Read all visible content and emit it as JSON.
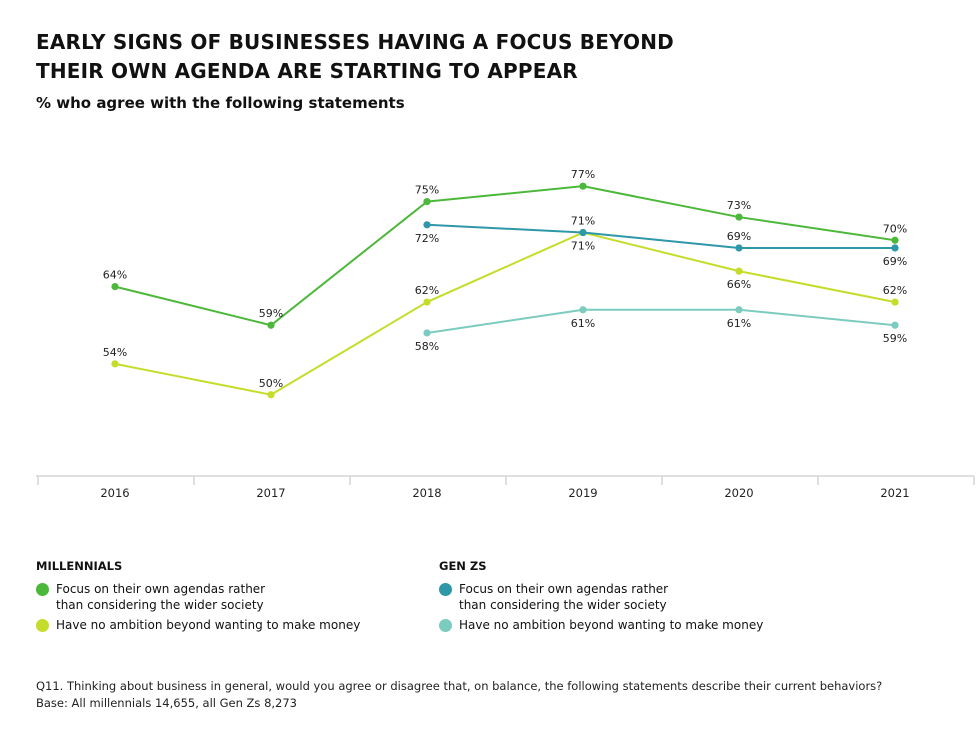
{
  "title": "EARLY SIGNS OF BUSINESSES HAVING A FOCUS BEYOND THEIR OWN AGENDA ARE STARTING TO APPEAR",
  "subtitle": "% who agree with the following statements",
  "chart_data": {
    "type": "line",
    "categories": [
      "2016",
      "2017",
      "2018",
      "2019",
      "2020",
      "2021"
    ],
    "ylim": [
      40,
      80
    ],
    "grid": false,
    "value_suffix": "%",
    "series": [
      {
        "name": "Millennials: Focus on their own agendas rather than considering the wider society",
        "color": "#4cb83a",
        "values": [
          64,
          59,
          75,
          77,
          73,
          70
        ]
      },
      {
        "name": "Millennials: Have no ambition beyond wanting to make money",
        "color": "#c5dd2a",
        "values": [
          54,
          50,
          62,
          71,
          66,
          62
        ]
      },
      {
        "name": "Gen Zs: Focus on their own agendas rather than considering the wider society",
        "color": "#2e97a8",
        "values": [
          null,
          null,
          72,
          71,
          69,
          69
        ]
      },
      {
        "name": "Gen Zs: Have no ambition beyond wanting to make money",
        "color": "#7ccbbf",
        "values": [
          null,
          null,
          58,
          61,
          61,
          59
        ]
      }
    ],
    "legend_placement": "bottom"
  },
  "legend": {
    "groups": [
      {
        "heading": "MILLENNIALS",
        "items": [
          {
            "label": "Focus on their own agendas rather than considering the wider society",
            "color": "#4cb83a"
          },
          {
            "label": "Have no ambition beyond wanting to make money",
            "color": "#c5dd2a"
          }
        ]
      },
      {
        "heading": "GEN ZS",
        "items": [
          {
            "label": "Focus on their own agendas rather than considering the wider society",
            "color": "#2e97a8"
          },
          {
            "label": "Have no ambition beyond wanting to make money",
            "color": "#7ccbbf"
          }
        ]
      }
    ]
  },
  "footnote": {
    "question": "Q11. Thinking about business in general, would you agree or disagree that, on balance, the following statements describe their current behaviors?",
    "base": "Base: All millennials 14,655, all Gen Zs 8,273"
  }
}
